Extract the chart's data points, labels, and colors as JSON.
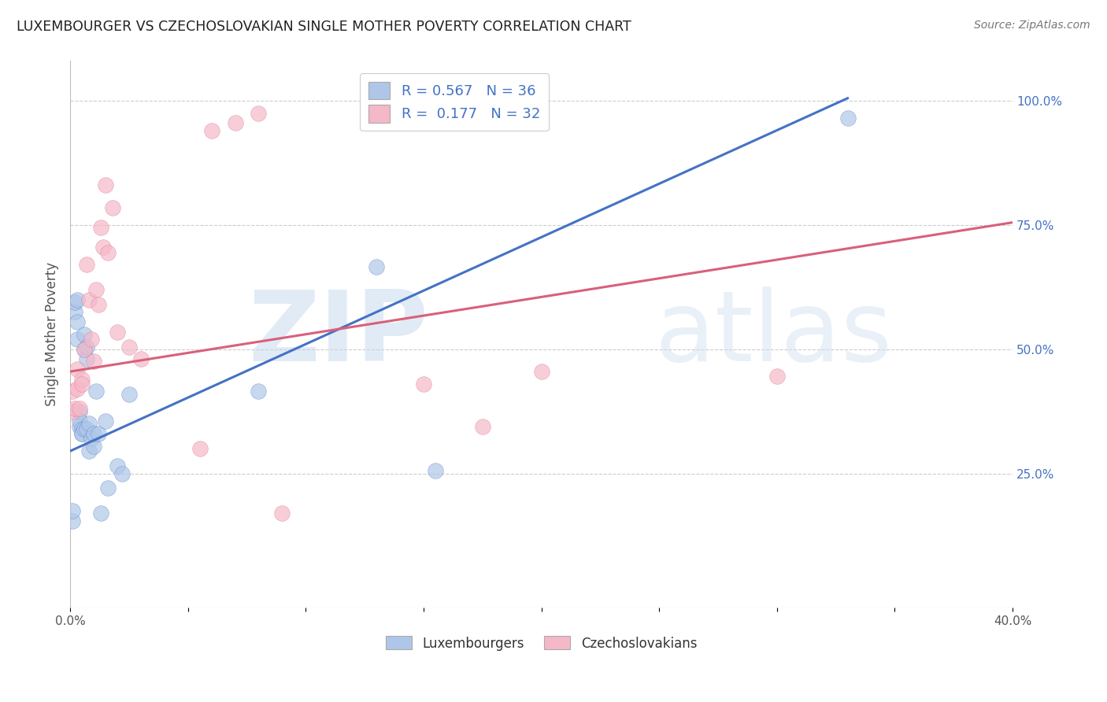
{
  "title": "LUXEMBOURGER VS CZECHOSLOVAKIAN SINGLE MOTHER POVERTY CORRELATION CHART",
  "source": "Source: ZipAtlas.com",
  "ylabel": "Single Mother Poverty",
  "xlim": [
    0.0,
    0.4
  ],
  "ylim": [
    -0.02,
    1.08
  ],
  "xtick_positions": [
    0.0,
    0.05,
    0.1,
    0.15,
    0.2,
    0.25,
    0.3,
    0.35,
    0.4
  ],
  "xtick_labels": [
    "0.0%",
    "",
    "",
    "",
    "",
    "",
    "",
    "",
    "40.0%"
  ],
  "yticks_right": [
    0.25,
    0.5,
    0.75,
    1.0
  ],
  "ytick_labels_right": [
    "25.0%",
    "50.0%",
    "75.0%",
    "100.0%"
  ],
  "blue_R": 0.567,
  "blue_N": 36,
  "pink_R": 0.177,
  "pink_N": 32,
  "blue_color": "#aec6e8",
  "pink_color": "#f5b8c8",
  "blue_line_color": "#4472c4",
  "pink_line_color": "#d9607a",
  "legend_blue_label": "Luxembourgers",
  "legend_pink_label": "Czechoslovakians",
  "watermark_zip": "ZIP",
  "watermark_atlas": "atlas",
  "blue_line_x": [
    0.0,
    0.33
  ],
  "blue_line_y": [
    0.295,
    1.005
  ],
  "pink_line_x": [
    0.0,
    0.4
  ],
  "pink_line_y": [
    0.455,
    0.755
  ],
  "blue_scatter_x": [
    0.001,
    0.001,
    0.002,
    0.002,
    0.003,
    0.003,
    0.003,
    0.004,
    0.004,
    0.004,
    0.005,
    0.005,
    0.005,
    0.006,
    0.006,
    0.006,
    0.007,
    0.007,
    0.007,
    0.008,
    0.008,
    0.009,
    0.01,
    0.01,
    0.011,
    0.012,
    0.013,
    0.015,
    0.016,
    0.02,
    0.022,
    0.025,
    0.08,
    0.13,
    0.155,
    0.33
  ],
  "blue_scatter_y": [
    0.155,
    0.175,
    0.575,
    0.595,
    0.6,
    0.555,
    0.52,
    0.375,
    0.345,
    0.355,
    0.34,
    0.33,
    0.33,
    0.34,
    0.5,
    0.53,
    0.34,
    0.48,
    0.505,
    0.35,
    0.295,
    0.32,
    0.305,
    0.33,
    0.415,
    0.33,
    0.17,
    0.355,
    0.22,
    0.265,
    0.25,
    0.41,
    0.415,
    0.665,
    0.255,
    0.965
  ],
  "pink_scatter_x": [
    0.001,
    0.001,
    0.002,
    0.003,
    0.003,
    0.004,
    0.005,
    0.005,
    0.006,
    0.007,
    0.008,
    0.009,
    0.01,
    0.011,
    0.012,
    0.013,
    0.014,
    0.015,
    0.016,
    0.018,
    0.02,
    0.025,
    0.03,
    0.055,
    0.06,
    0.07,
    0.08,
    0.09,
    0.15,
    0.175,
    0.2,
    0.3
  ],
  "pink_scatter_y": [
    0.375,
    0.415,
    0.38,
    0.42,
    0.46,
    0.38,
    0.44,
    0.43,
    0.5,
    0.67,
    0.6,
    0.52,
    0.475,
    0.62,
    0.59,
    0.745,
    0.705,
    0.83,
    0.695,
    0.785,
    0.535,
    0.505,
    0.48,
    0.3,
    0.94,
    0.955,
    0.975,
    0.17,
    0.43,
    0.345,
    0.455,
    0.445
  ]
}
